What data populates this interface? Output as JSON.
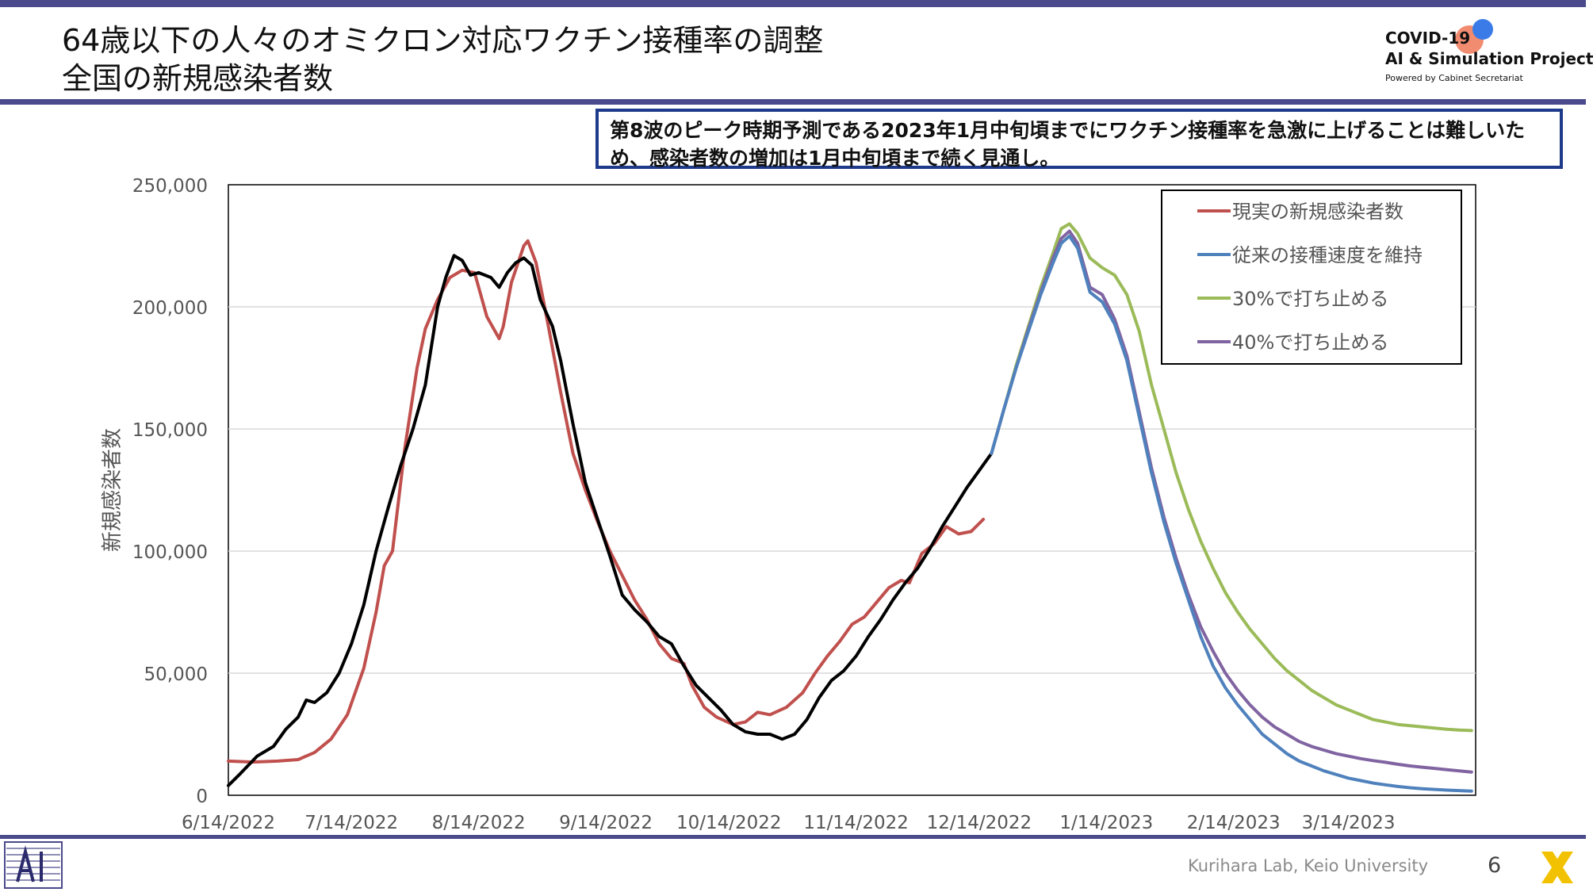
{
  "header": {
    "title_line1": "64歳以下の人々のオミクロン対応ワクチン接種率の調整",
    "title_line2": "全国の新規感染者数",
    "logo_line1": "COVID-19",
    "logo_line2": "AI & Simulation Project",
    "logo_line3": "Powered by Cabinet Secretariat"
  },
  "callout": "第8波のピーク時期予測である2023年1月中旬頃までにワクチン接種率を急激に上げることは難しいため、感染者数の増加は1月中旬頃まで続く見通し。",
  "footer": {
    "lab": "Kurihara Lab, Keio University",
    "page": "6"
  },
  "colors": {
    "actual": "#c0504d",
    "model": "#000000",
    "keep": "#4f81bd",
    "stop30": "#9bbb59",
    "stop40": "#8064a2",
    "accent": "#4a4a8c"
  },
  "chart_data": {
    "type": "line",
    "title": "",
    "xlabel": "",
    "ylabel": "新規感染者数",
    "ylim": [
      0,
      250000
    ],
    "xlim": [
      "2022-06-14",
      "2023-04-14"
    ],
    "x_ticks": [
      "6/14/2022",
      "7/14/2022",
      "8/14/2022",
      "9/14/2022",
      "10/14/2022",
      "11/14/2022",
      "12/14/2022",
      "1/14/2023",
      "2/14/2023",
      "3/14/2023"
    ],
    "y_ticks": [
      "0",
      "50,000",
      "100,000",
      "150,000",
      "200,000",
      "250,000"
    ],
    "grid": true,
    "legend_position": "top-right",
    "legend": [
      "現実の新規感染者数",
      "従来の接種速度を維持",
      "30%で打ち止める",
      "40%で打ち止める"
    ],
    "series": [
      {
        "name": "現実の新規感染者数",
        "color": "#c0504d",
        "points": [
          [
            "2022-06-14",
            14000
          ],
          [
            "2022-06-20",
            13600
          ],
          [
            "2022-06-26",
            14000
          ],
          [
            "2022-07-01",
            14600
          ],
          [
            "2022-07-05",
            17500
          ],
          [
            "2022-07-09",
            23000
          ],
          [
            "2022-07-13",
            33000
          ],
          [
            "2022-07-17",
            52000
          ],
          [
            "2022-07-20",
            75000
          ],
          [
            "2022-07-22",
            94000
          ],
          [
            "2022-07-24",
            100000
          ],
          [
            "2022-07-27",
            142000
          ],
          [
            "2022-07-30",
            175000
          ],
          [
            "2022-08-01",
            191000
          ],
          [
            "2022-08-04",
            203000
          ],
          [
            "2022-08-07",
            212000
          ],
          [
            "2022-08-10",
            215000
          ],
          [
            "2022-08-13",
            214000
          ],
          [
            "2022-08-16",
            196000
          ],
          [
            "2022-08-19",
            187000
          ],
          [
            "2022-08-20",
            192000
          ],
          [
            "2022-08-22",
            210000
          ],
          [
            "2022-08-25",
            225000
          ],
          [
            "2022-08-26",
            227000
          ],
          [
            "2022-08-28",
            218000
          ],
          [
            "2022-08-31",
            192000
          ],
          [
            "2022-09-03",
            165000
          ],
          [
            "2022-09-06",
            140000
          ],
          [
            "2022-09-09",
            125000
          ],
          [
            "2022-09-12",
            112000
          ],
          [
            "2022-09-15",
            100000
          ],
          [
            "2022-09-18",
            90000
          ],
          [
            "2022-09-21",
            80000
          ],
          [
            "2022-09-24",
            72000
          ],
          [
            "2022-09-27",
            62000
          ],
          [
            "2022-09-30",
            56000
          ],
          [
            "2022-10-03",
            54000
          ],
          [
            "2022-10-05",
            45000
          ],
          [
            "2022-10-08",
            36000
          ],
          [
            "2022-10-11",
            32000
          ],
          [
            "2022-10-15",
            29000
          ],
          [
            "2022-10-18",
            30000
          ],
          [
            "2022-10-21",
            34000
          ],
          [
            "2022-10-24",
            33000
          ],
          [
            "2022-10-28",
            36000
          ],
          [
            "2022-11-01",
            42000
          ],
          [
            "2022-11-04",
            50000
          ],
          [
            "2022-11-07",
            57000
          ],
          [
            "2022-11-10",
            63000
          ],
          [
            "2022-11-13",
            70000
          ],
          [
            "2022-11-16",
            73000
          ],
          [
            "2022-11-19",
            79000
          ],
          [
            "2022-11-22",
            85000
          ],
          [
            "2022-11-25",
            88000
          ],
          [
            "2022-11-27",
            87000
          ],
          [
            "2022-11-30",
            99000
          ],
          [
            "2022-12-03",
            103000
          ],
          [
            "2022-12-06",
            110000
          ],
          [
            "2022-12-09",
            107000
          ],
          [
            "2022-12-12",
            108000
          ],
          [
            "2022-12-15",
            113000
          ]
        ]
      },
      {
        "name": "",
        "color": "#000000",
        "points": [
          [
            "2022-06-14",
            4000
          ],
          [
            "2022-06-17",
            9000
          ],
          [
            "2022-06-21",
            16000
          ],
          [
            "2022-06-25",
            20000
          ],
          [
            "2022-06-28",
            27000
          ],
          [
            "2022-07-01",
            32000
          ],
          [
            "2022-07-03",
            39000
          ],
          [
            "2022-07-05",
            38000
          ],
          [
            "2022-07-08",
            42000
          ],
          [
            "2022-07-11",
            50000
          ],
          [
            "2022-07-14",
            62000
          ],
          [
            "2022-07-17",
            78000
          ],
          [
            "2022-07-20",
            100000
          ],
          [
            "2022-07-23",
            118000
          ],
          [
            "2022-07-26",
            135000
          ],
          [
            "2022-07-29",
            150000
          ],
          [
            "2022-08-01",
            168000
          ],
          [
            "2022-08-04",
            200000
          ],
          [
            "2022-08-06",
            212000
          ],
          [
            "2022-08-08",
            221000
          ],
          [
            "2022-08-10",
            219000
          ],
          [
            "2022-08-12",
            213000
          ],
          [
            "2022-08-14",
            214000
          ],
          [
            "2022-08-17",
            212000
          ],
          [
            "2022-08-19",
            208000
          ],
          [
            "2022-08-21",
            214000
          ],
          [
            "2022-08-23",
            218000
          ],
          [
            "2022-08-25",
            220000
          ],
          [
            "2022-08-27",
            217000
          ],
          [
            "2022-08-29",
            203000
          ],
          [
            "2022-09-01",
            192000
          ],
          [
            "2022-09-03",
            178000
          ],
          [
            "2022-09-06",
            152000
          ],
          [
            "2022-09-09",
            128000
          ],
          [
            "2022-09-12",
            113000
          ],
          [
            "2022-09-15",
            98000
          ],
          [
            "2022-09-18",
            82000
          ],
          [
            "2022-09-21",
            76000
          ],
          [
            "2022-09-24",
            71000
          ],
          [
            "2022-09-27",
            65000
          ],
          [
            "2022-09-30",
            62000
          ],
          [
            "2022-10-03",
            53000
          ],
          [
            "2022-10-06",
            45000
          ],
          [
            "2022-10-09",
            40000
          ],
          [
            "2022-10-12",
            35000
          ],
          [
            "2022-10-15",
            29000
          ],
          [
            "2022-10-18",
            26000
          ],
          [
            "2022-10-21",
            25000
          ],
          [
            "2022-10-24",
            25000
          ],
          [
            "2022-10-27",
            23000
          ],
          [
            "2022-10-30",
            25000
          ],
          [
            "2022-11-02",
            31000
          ],
          [
            "2022-11-05",
            40000
          ],
          [
            "2022-11-08",
            47000
          ],
          [
            "2022-11-11",
            51000
          ],
          [
            "2022-11-14",
            57000
          ],
          [
            "2022-11-17",
            65000
          ],
          [
            "2022-11-20",
            72000
          ],
          [
            "2022-11-23",
            80000
          ],
          [
            "2022-11-26",
            87000
          ],
          [
            "2022-11-29",
            93000
          ],
          [
            "2022-12-02",
            101000
          ],
          [
            "2022-12-05",
            110000
          ],
          [
            "2022-12-08",
            118000
          ],
          [
            "2022-12-11",
            126000
          ],
          [
            "2022-12-14",
            133000
          ],
          [
            "2022-12-17",
            140000
          ]
        ]
      },
      {
        "name": "従来の接種速度を維持",
        "color": "#4f81bd",
        "points": [
          [
            "2022-12-17",
            140000
          ],
          [
            "2022-12-20",
            158000
          ],
          [
            "2022-12-23",
            175000
          ],
          [
            "2022-12-26",
            190000
          ],
          [
            "2022-12-29",
            205000
          ],
          [
            "2023-01-01",
            218000
          ],
          [
            "2023-01-03",
            226000
          ],
          [
            "2023-01-05",
            229000
          ],
          [
            "2023-01-07",
            224000
          ],
          [
            "2023-01-10",
            206000
          ],
          [
            "2023-01-13",
            202000
          ],
          [
            "2023-01-16",
            193000
          ],
          [
            "2023-01-19",
            178000
          ],
          [
            "2023-01-22",
            155000
          ],
          [
            "2023-01-25",
            132000
          ],
          [
            "2023-01-28",
            112000
          ],
          [
            "2023-01-31",
            95000
          ],
          [
            "2023-02-03",
            80000
          ],
          [
            "2023-02-06",
            65000
          ],
          [
            "2023-02-09",
            53000
          ],
          [
            "2023-02-12",
            44000
          ],
          [
            "2023-02-15",
            37000
          ],
          [
            "2023-02-18",
            31000
          ],
          [
            "2023-02-21",
            25000
          ],
          [
            "2023-02-24",
            21000
          ],
          [
            "2023-02-27",
            17000
          ],
          [
            "2023-03-02",
            14000
          ],
          [
            "2023-03-05",
            12000
          ],
          [
            "2023-03-08",
            10000
          ],
          [
            "2023-03-11",
            8500
          ],
          [
            "2023-03-14",
            7000
          ],
          [
            "2023-03-17",
            6000
          ],
          [
            "2023-03-20",
            5000
          ],
          [
            "2023-03-23",
            4300
          ],
          [
            "2023-03-26",
            3600
          ],
          [
            "2023-03-29",
            3100
          ],
          [
            "2023-04-01",
            2700
          ],
          [
            "2023-04-04",
            2400
          ],
          [
            "2023-04-07",
            2100
          ],
          [
            "2023-04-10",
            1900
          ],
          [
            "2023-04-13",
            1700
          ]
        ]
      },
      {
        "name": "30%で打ち止める",
        "color": "#9bbb59",
        "points": [
          [
            "2022-12-17",
            140000
          ],
          [
            "2022-12-20",
            158000
          ],
          [
            "2022-12-23",
            176000
          ],
          [
            "2022-12-26",
            192000
          ],
          [
            "2022-12-29",
            208000
          ],
          [
            "2023-01-01",
            222000
          ],
          [
            "2023-01-03",
            232000
          ],
          [
            "2023-01-05",
            234000
          ],
          [
            "2023-01-07",
            230000
          ],
          [
            "2023-01-10",
            220000
          ],
          [
            "2023-01-13",
            216000
          ],
          [
            "2023-01-16",
            213000
          ],
          [
            "2023-01-19",
            205000
          ],
          [
            "2023-01-22",
            190000
          ],
          [
            "2023-01-25",
            168000
          ],
          [
            "2023-01-28",
            150000
          ],
          [
            "2023-01-31",
            132000
          ],
          [
            "2023-02-03",
            117000
          ],
          [
            "2023-02-06",
            104000
          ],
          [
            "2023-02-09",
            93000
          ],
          [
            "2023-02-12",
            83000
          ],
          [
            "2023-02-15",
            75000
          ],
          [
            "2023-02-18",
            68000
          ],
          [
            "2023-02-21",
            62000
          ],
          [
            "2023-02-24",
            56000
          ],
          [
            "2023-02-27",
            51000
          ],
          [
            "2023-03-02",
            47000
          ],
          [
            "2023-03-05",
            43000
          ],
          [
            "2023-03-08",
            40000
          ],
          [
            "2023-03-11",
            37000
          ],
          [
            "2023-03-14",
            35000
          ],
          [
            "2023-03-17",
            33000
          ],
          [
            "2023-03-20",
            31000
          ],
          [
            "2023-03-23",
            30000
          ],
          [
            "2023-03-26",
            29000
          ],
          [
            "2023-03-29",
            28500
          ],
          [
            "2023-04-01",
            28000
          ],
          [
            "2023-04-04",
            27500
          ],
          [
            "2023-04-07",
            27000
          ],
          [
            "2023-04-10",
            26700
          ],
          [
            "2023-04-13",
            26500
          ]
        ]
      },
      {
        "name": "40%で打ち止める",
        "color": "#8064a2",
        "points": [
          [
            "2022-12-17",
            140000
          ],
          [
            "2022-12-20",
            158000
          ],
          [
            "2022-12-23",
            175000
          ],
          [
            "2022-12-26",
            191000
          ],
          [
            "2022-12-29",
            206000
          ],
          [
            "2023-01-01",
            220000
          ],
          [
            "2023-01-03",
            228000
          ],
          [
            "2023-01-05",
            231000
          ],
          [
            "2023-01-07",
            226000
          ],
          [
            "2023-01-10",
            208000
          ],
          [
            "2023-01-13",
            205000
          ],
          [
            "2023-01-16",
            195000
          ],
          [
            "2023-01-19",
            180000
          ],
          [
            "2023-01-22",
            157000
          ],
          [
            "2023-01-25",
            134000
          ],
          [
            "2023-01-28",
            114000
          ],
          [
            "2023-01-31",
            97000
          ],
          [
            "2023-02-03",
            82000
          ],
          [
            "2023-02-06",
            69000
          ],
          [
            "2023-02-09",
            59000
          ],
          [
            "2023-02-12",
            50000
          ],
          [
            "2023-02-15",
            43000
          ],
          [
            "2023-02-18",
            37000
          ],
          [
            "2023-02-21",
            32000
          ],
          [
            "2023-02-24",
            28000
          ],
          [
            "2023-02-27",
            25000
          ],
          [
            "2023-03-02",
            22000
          ],
          [
            "2023-03-05",
            20000
          ],
          [
            "2023-03-08",
            18500
          ],
          [
            "2023-03-11",
            17000
          ],
          [
            "2023-03-14",
            16000
          ],
          [
            "2023-03-17",
            15000
          ],
          [
            "2023-03-20",
            14200
          ],
          [
            "2023-03-23",
            13500
          ],
          [
            "2023-03-26",
            12700
          ],
          [
            "2023-03-29",
            12000
          ],
          [
            "2023-04-01",
            11500
          ],
          [
            "2023-04-04",
            11000
          ],
          [
            "2023-04-07",
            10500
          ],
          [
            "2023-04-10",
            10000
          ],
          [
            "2023-04-13",
            9500
          ]
        ]
      }
    ]
  }
}
